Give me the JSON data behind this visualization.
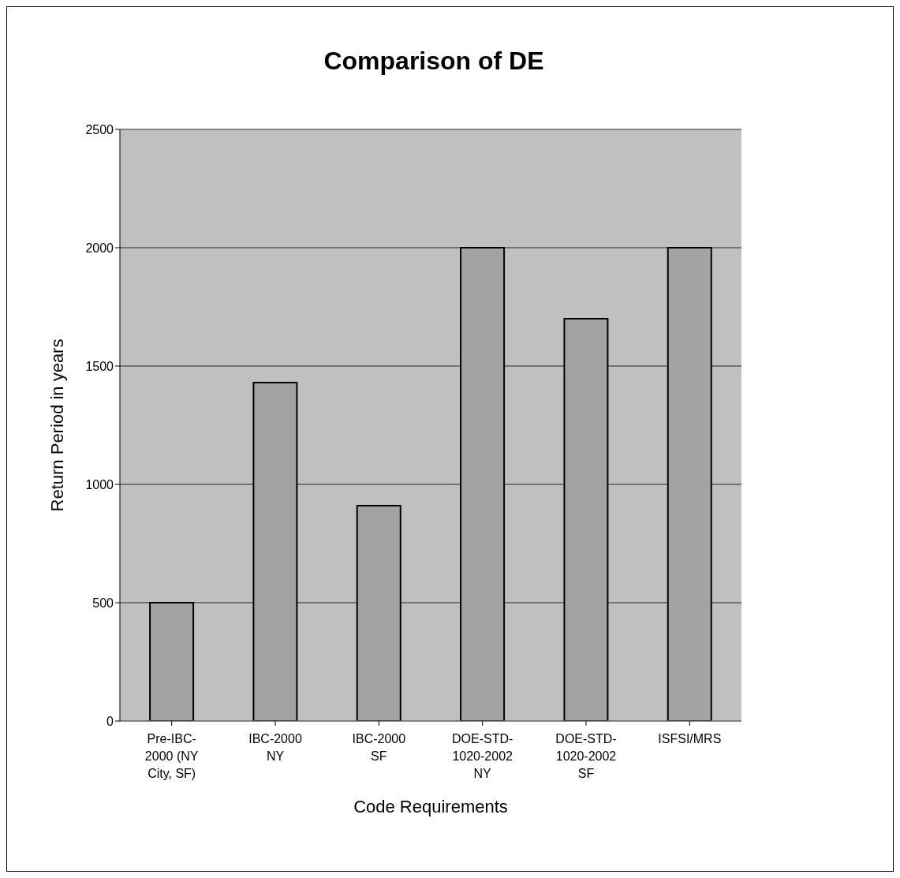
{
  "chart_data": {
    "type": "bar",
    "title": "Comparison of DE",
    "xlabel": "Code Requirements",
    "ylabel": "Return Period in years",
    "categories": [
      "Pre-IBC-2000 (NY City, SF)",
      "IBC-2000 NY",
      "IBC-2000 SF",
      "DOE-STD-1020-2002 NY",
      "DOE-STD-1020-2002 SF",
      "ISFSI/MRS"
    ],
    "values": [
      500,
      1430,
      910,
      2000,
      1700,
      2000
    ],
    "color": "#a3a3a3",
    "ylim": [
      0,
      2500
    ],
    "yticks": [
      0,
      500,
      1000,
      1500,
      2000,
      2500
    ],
    "grid": "y"
  }
}
